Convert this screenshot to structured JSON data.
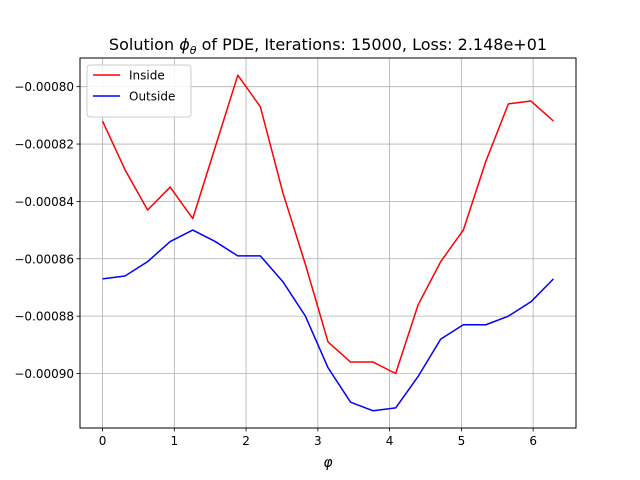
{
  "chart_data": {
    "type": "line",
    "title_parts": {
      "prefix": "Solution ",
      "symbol": "ϕ",
      "subscript": "θ",
      "suffix": " of PDE, Iterations: 15000, Loss: 2.148e+01"
    },
    "xlabel": "φ",
    "ylabel": "",
    "xlim": [
      -0.314,
      6.597
    ],
    "ylim": [
      -0.000919,
      -0.00079
    ],
    "x_ticks": [
      0,
      1,
      2,
      3,
      4,
      5,
      6
    ],
    "x_tick_labels": [
      "0",
      "1",
      "2",
      "3",
      "4",
      "5",
      "6"
    ],
    "y_ticks": [
      -0.0009,
      -0.00088,
      -0.00086,
      -0.00084,
      -0.00082,
      -0.0008
    ],
    "y_tick_labels": [
      "−0.00090",
      "−0.00088",
      "−0.00086",
      "−0.00084",
      "−0.00082",
      "−0.00080"
    ],
    "grid": true,
    "legend_position": "top-left",
    "x": [
      0.0,
      0.314,
      0.628,
      0.942,
      1.257,
      1.571,
      1.885,
      2.199,
      2.513,
      2.827,
      3.142,
      3.456,
      3.77,
      4.084,
      4.398,
      4.712,
      5.027,
      5.341,
      5.655,
      5.969,
      6.283
    ],
    "series": [
      {
        "name": "Inside",
        "color": "#ff0000",
        "values": [
          -0.000812,
          -0.000829,
          -0.000843,
          -0.000835,
          -0.000846,
          -0.000821,
          -0.000796,
          -0.000807,
          -0.000837,
          -0.000862,
          -0.000889,
          -0.000896,
          -0.000896,
          -0.0009,
          -0.000876,
          -0.000861,
          -0.00085,
          -0.000826,
          -0.000806,
          -0.000805,
          -0.000812
        ]
      },
      {
        "name": "Outside",
        "color": "#0000ff",
        "values": [
          -0.000867,
          -0.000866,
          -0.000861,
          -0.000854,
          -0.00085,
          -0.000854,
          -0.000859,
          -0.000859,
          -0.000868,
          -0.00088,
          -0.000898,
          -0.00091,
          -0.000913,
          -0.000912,
          -0.000901,
          -0.000888,
          -0.000883,
          -0.000883,
          -0.00088,
          -0.000875,
          -0.000867
        ]
      }
    ]
  }
}
